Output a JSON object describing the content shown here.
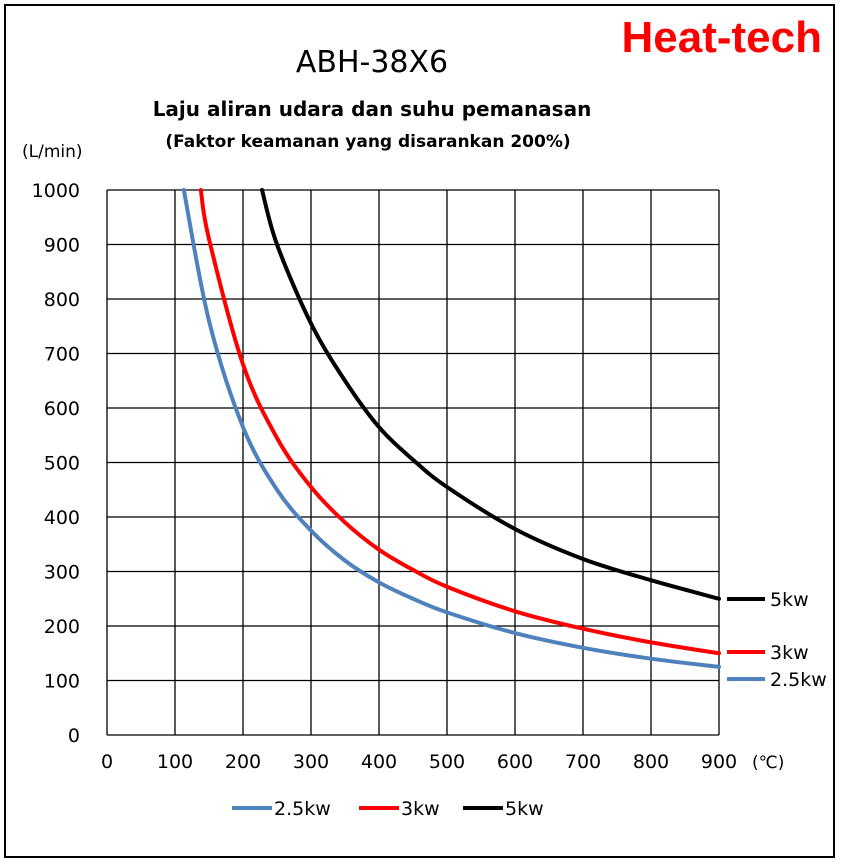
{
  "brand": "Heat-tech",
  "chart_data": {
    "type": "line",
    "title": "ABH-38X6",
    "subtitle": "Laju aliran udara dan suhu pemanasan",
    "subtitle2": "(Faktor keamanan yang disarankan 200%)",
    "xlabel": "(℃)",
    "ylabel": "(L/min)",
    "xlim": [
      0,
      900
    ],
    "ylim": [
      0,
      1000
    ],
    "xticks": [
      0,
      100,
      200,
      300,
      400,
      500,
      600,
      700,
      800,
      900
    ],
    "yticks": [
      0,
      100,
      200,
      300,
      400,
      500,
      600,
      700,
      800,
      900,
      1000
    ],
    "grid": true,
    "legend_position": "bottom",
    "series": [
      {
        "name": "2.5kw",
        "color": "#4f81bd",
        "x": [
          113,
          150,
          200,
          250,
          300,
          350,
          400,
          450,
          500,
          600,
          700,
          800,
          900
        ],
        "y": [
          1000,
          760,
          565,
          450,
          375,
          320,
          280,
          250,
          225,
          187,
          160,
          140,
          125
        ]
      },
      {
        "name": "3kw",
        "color": "#ff0000",
        "x": [
          138,
          150,
          200,
          250,
          300,
          350,
          400,
          450,
          500,
          600,
          700,
          800,
          900
        ],
        "y": [
          1000,
          910,
          680,
          545,
          455,
          390,
          340,
          303,
          272,
          227,
          195,
          170,
          150
        ]
      },
      {
        "name": "5kw",
        "color": "#000000",
        "x": [
          228,
          250,
          300,
          350,
          400,
          450,
          500,
          600,
          700,
          800,
          900
        ],
        "y": [
          1000,
          900,
          755,
          650,
          565,
          505,
          455,
          378,
          323,
          284,
          250
        ]
      }
    ]
  }
}
